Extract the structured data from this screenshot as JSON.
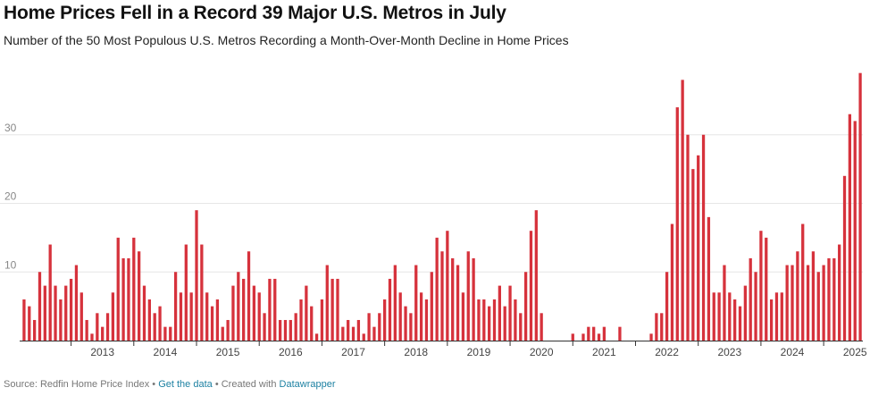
{
  "chart_data": {
    "type": "bar",
    "title": "Home Prices Fell in a Record 39 Major U.S. Metros in July",
    "subtitle": "Number of the 50 Most Populous U.S. Metros Recording a Month-Over-Month Decline in Home Prices",
    "xlabel": "",
    "ylabel": "",
    "ylim": [
      0,
      40
    ],
    "yticks": [
      10,
      20,
      30
    ],
    "grid": true,
    "legend": "none",
    "bar_color": "#d6323c",
    "x_start": "2012-04",
    "xtick_labels": [
      "2013",
      "2014",
      "2015",
      "2016",
      "2017",
      "2018",
      "2019",
      "2020",
      "2021",
      "2022",
      "2023",
      "2024",
      "2025"
    ],
    "values": [
      6,
      5,
      3,
      10,
      8,
      14,
      8,
      6,
      8,
      9,
      11,
      7,
      3,
      1,
      4,
      2,
      4,
      7,
      15,
      12,
      12,
      15,
      13,
      8,
      6,
      4,
      5,
      2,
      2,
      10,
      7,
      14,
      7,
      19,
      14,
      7,
      5,
      6,
      2,
      3,
      8,
      10,
      9,
      13,
      8,
      7,
      4,
      9,
      9,
      3,
      3,
      3,
      4,
      6,
      8,
      5,
      1,
      6,
      11,
      9,
      9,
      2,
      3,
      2,
      3,
      1,
      4,
      2,
      4,
      6,
      9,
      11,
      7,
      5,
      4,
      11,
      7,
      6,
      10,
      15,
      13,
      16,
      12,
      11,
      7,
      13,
      12,
      6,
      6,
      5,
      6,
      8,
      5,
      8,
      6,
      4,
      10,
      16,
      19,
      4,
      0,
      0,
      0,
      0,
      0,
      1,
      0,
      1,
      2,
      2,
      1,
      2,
      0,
      0,
      2,
      0,
      0,
      0,
      0,
      0,
      1,
      4,
      4,
      10,
      17,
      34,
      38,
      30,
      25,
      27,
      30,
      18,
      7,
      7,
      11,
      7,
      6,
      5,
      8,
      12,
      10,
      16,
      15,
      6,
      7,
      7,
      11,
      11,
      13,
      17,
      11,
      13,
      10,
      11,
      12,
      12,
      14,
      24,
      33,
      32,
      39
    ]
  },
  "footer": {
    "source": "Source: Redfin Home Price Index",
    "sep1": " • ",
    "data_link": "Get the data",
    "sep2": " • Created with ",
    "tool_link": "Datawrapper"
  }
}
